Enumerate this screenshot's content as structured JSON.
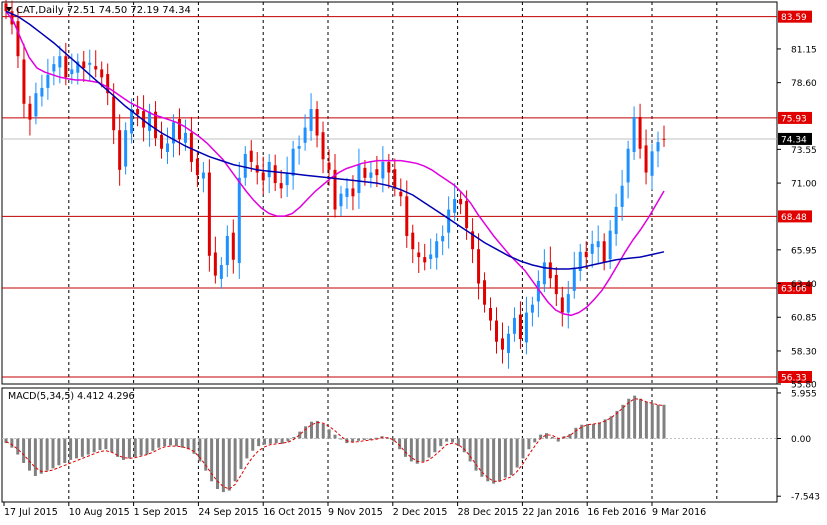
{
  "header": {
    "symbol_line": "CAT,Daily  72.51 74.50 72.19 74.34",
    "indicator_line": "MACD(5,34,5) 4.412 4.296"
  },
  "colors": {
    "background": "#ffffff",
    "bull_candle": "#1e90ff",
    "bear_candle": "#e00000",
    "ma_fast": "#e000e0",
    "ma_slow": "#0000b0",
    "level_line": "#c00000",
    "level_label_bg": "#e00000",
    "current_price_bg": "#000000",
    "grid": "#000000",
    "histogram": "#808080",
    "signal_line": "#e00000"
  },
  "chart_data": [
    {
      "type": "candlestick",
      "title": "CAT,Daily  72.51 74.50 72.19 74.34",
      "x_labels": [
        "17 Jul 2015",
        "10 Aug 2015",
        "1 Sep 2015",
        "24 Sep 2015",
        "16 Oct 2015",
        "9 Nov 2015",
        "2 Dec 2015",
        "28 Dec 2015",
        "22 Jan 2016",
        "16 Feb 2016",
        "9 Mar 2016"
      ],
      "y_ticks": [
        81.15,
        78.6,
        73.55,
        71.0,
        65.95,
        63.4,
        60.85,
        58.3,
        55.8
      ],
      "ylim": [
        55.8,
        84.7
      ],
      "grid": "vertical dotted",
      "horizontal_levels": [
        83.59,
        75.93,
        68.48,
        63.06,
        56.33
      ],
      "current_price": 74.34,
      "series": [
        {
          "name": "close",
          "values": [
            84.0,
            83.0,
            80.6,
            77.0,
            75.8,
            77.8,
            78.2,
            79.2,
            80.0,
            80.6,
            79.0,
            79.6,
            80.2,
            79.7,
            80.1,
            79.6,
            79.0,
            77.8,
            75.0,
            72.0,
            75.0,
            76.6,
            76.2,
            75.2,
            76.4,
            74.4,
            73.6,
            74.0,
            75.6,
            74.3,
            74.8,
            72.6,
            71.6,
            71.8,
            65.5,
            64.0,
            64.8,
            67.0,
            65.2,
            71.4,
            73.2,
            72.6,
            71.8,
            71.2,
            72.6,
            71.0,
            70.6,
            71.8,
            73.6,
            73.8,
            75.2,
            76.6,
            74.6,
            72.8,
            72.0,
            69.0,
            70.2,
            70.6,
            70.0,
            72.4,
            71.4,
            71.8,
            71.6,
            72.6,
            71.8,
            70.6,
            70.0,
            67.0,
            66.0,
            65.4,
            65.0,
            65.6,
            66.6,
            67.0,
            69.0,
            69.8,
            69.4,
            67.6,
            66.0,
            63.4,
            61.8,
            60.6,
            59.0,
            58.4,
            59.6,
            60.8,
            59.2,
            61.2,
            61.8,
            63.6,
            65.0,
            63.8,
            62.6,
            61.2,
            62.6,
            64.6,
            65.8,
            65.4,
            66.4,
            66.6,
            65.0,
            67.4,
            69.2,
            70.8,
            73.6,
            76.0,
            73.6,
            71.8,
            73.4,
            74.1,
            74.34
          ]
        },
        {
          "name": "ma-fast",
          "values": [
            84.0,
            83.2,
            81.8,
            80.5,
            79.7,
            79.4,
            79.2,
            79.0,
            78.9,
            78.8,
            78.8,
            78.7,
            78.6,
            78.3,
            77.9,
            77.5,
            77.1,
            76.8,
            76.5,
            76.2,
            76.0,
            75.8,
            75.6,
            75.3,
            74.9,
            74.5,
            74.0,
            73.4,
            72.8,
            72.0,
            71.2,
            70.4,
            69.7,
            69.1,
            68.7,
            68.5,
            68.5,
            68.7,
            69.2,
            69.8,
            70.4,
            70.9,
            71.4,
            71.8,
            72.1,
            72.3,
            72.5,
            72.6,
            72.7,
            72.7,
            72.7,
            72.7,
            72.6,
            72.5,
            72.3,
            72.0,
            71.6,
            71.2,
            70.8,
            70.2,
            69.5,
            68.6,
            67.8,
            67.0,
            66.3,
            65.6,
            65.0,
            64.4,
            63.6,
            62.8,
            62.0,
            61.4,
            61.1,
            61.0,
            61.2,
            61.6,
            62.2,
            62.9,
            63.8,
            64.8,
            65.8,
            66.7,
            67.5,
            68.4,
            69.4,
            70.4
          ]
        },
        {
          "name": "ma-slow",
          "values": [
            84.0,
            83.6,
            83.0,
            82.3,
            81.6,
            80.8,
            80.0,
            79.2,
            78.4,
            77.6,
            76.8,
            76.1,
            75.4,
            74.8,
            74.3,
            73.8,
            73.4,
            73.0,
            72.7,
            72.4,
            72.2,
            72.0,
            71.9,
            71.8,
            71.7,
            71.6,
            71.5,
            71.4,
            71.3,
            71.2,
            71.1,
            71.0,
            70.8,
            70.5,
            70.1,
            69.5,
            68.9,
            68.3,
            67.7,
            67.1,
            66.5,
            66.0,
            65.5,
            65.1,
            64.8,
            64.6,
            64.5,
            64.5,
            64.6,
            64.8,
            65.0,
            65.2,
            65.3,
            65.4,
            65.6,
            65.8
          ]
        }
      ]
    },
    {
      "type": "bar",
      "title": "MACD(5,34,5) 4.412 4.296",
      "y_ticks": [
        5.955,
        0.0,
        -7.543
      ],
      "ylim": [
        -8.3,
        6.6
      ],
      "series": [
        {
          "name": "MACD",
          "values": [
            -0.6,
            -1.2,
            -2.1,
            -3.2,
            -4.2,
            -4.9,
            -4.6,
            -4.2,
            -3.9,
            -3.5,
            -3.2,
            -2.8,
            -2.6,
            -2.4,
            -2.1,
            -1.8,
            -1.5,
            -1.4,
            -1.8,
            -2.4,
            -2.8,
            -2.6,
            -2.4,
            -2.2,
            -2.1,
            -1.6,
            -1.2,
            -1.0,
            -0.9,
            -1.0,
            -1.2,
            -1.4,
            -2.0,
            -3.0,
            -4.2,
            -5.6,
            -6.6,
            -7.0,
            -6.8,
            -5.6,
            -4.0,
            -2.6,
            -1.6,
            -1.0,
            -0.8,
            -0.7,
            -0.6,
            -0.7,
            -0.4,
            0.2,
            0.9,
            1.6,
            2.2,
            2.3,
            1.9,
            1.2,
            0.5,
            -0.1,
            -0.6,
            -0.5,
            -0.3,
            -0.2,
            -0.2,
            0.1,
            0.3,
            0.1,
            -0.4,
            -1.4,
            -2.4,
            -3.0,
            -3.3,
            -3.0,
            -2.5,
            -1.8,
            -1.0,
            -0.4,
            -0.5,
            -1.0,
            -1.8,
            -3.0,
            -4.2,
            -5.0,
            -5.6,
            -5.9,
            -5.6,
            -5.1,
            -4.8,
            -3.8,
            -2.6,
            -1.4,
            -0.5,
            0.5,
            0.7,
            0.2,
            -0.4,
            0.3,
            0.6,
            1.4,
            1.8,
            1.9,
            1.9,
            2.1,
            2.5,
            2.9,
            3.6,
            4.4,
            5.2,
            5.6,
            5.2,
            4.8,
            4.6,
            4.4,
            4.41
          ]
        },
        {
          "name": "Signal",
          "values": [
            -0.4,
            -0.8,
            -1.4,
            -2.1,
            -3.0,
            -3.8,
            -4.3,
            -4.3,
            -4.1,
            -3.8,
            -3.5,
            -3.2,
            -2.9,
            -2.6,
            -2.3,
            -2.0,
            -1.7,
            -1.6,
            -1.8,
            -2.2,
            -2.5,
            -2.6,
            -2.5,
            -2.3,
            -2.1,
            -1.8,
            -1.4,
            -1.1,
            -1.0,
            -1.0,
            -1.1,
            -1.3,
            -1.7,
            -2.5,
            -3.5,
            -4.6,
            -5.6,
            -6.3,
            -6.6,
            -6.0,
            -4.8,
            -3.5,
            -2.4,
            -1.6,
            -1.1,
            -0.8,
            -0.7,
            -0.6,
            -0.5,
            -0.1,
            0.5,
            1.2,
            1.8,
            2.1,
            2.0,
            1.6,
            1.0,
            0.3,
            -0.3,
            -0.5,
            -0.4,
            -0.3,
            -0.2,
            -0.1,
            0.1,
            0.1,
            -0.2,
            -0.9,
            -1.8,
            -2.5,
            -3.0,
            -3.1,
            -2.8,
            -2.2,
            -1.5,
            -0.8,
            -0.6,
            -0.8,
            -1.4,
            -2.3,
            -3.4,
            -4.4,
            -5.1,
            -5.6,
            -5.6,
            -5.3,
            -5.0,
            -4.3,
            -3.3,
            -2.1,
            -1.0,
            0.0,
            0.5,
            0.4,
            0.0,
            0.1,
            0.4,
            1.0,
            1.5,
            1.8,
            1.9,
            2.0,
            2.3,
            2.7,
            3.3,
            4.0,
            4.7,
            5.2,
            5.1,
            4.8,
            4.6,
            4.4,
            4.296
          ]
        }
      ]
    }
  ],
  "price_scale": {
    "labels": [
      "81.15",
      "78.60",
      "73.55",
      "71.00",
      "65.95",
      "63.40",
      "60.85",
      "58.30",
      "55.80"
    ],
    "level_labels": [
      "83.59",
      "75.93",
      "68.48",
      "63.06",
      "56.33"
    ],
    "current_label": "74.34"
  },
  "macd_scale": {
    "labels": [
      "5.955",
      "0.00",
      "-7.543"
    ]
  },
  "time_axis": {
    "labels": [
      "17 Jul 2015",
      "10 Aug 2015",
      "1 Sep 2015",
      "24 Sep 2015",
      "16 Oct 2015",
      "9 Nov 2015",
      "2 Dec 2015",
      "28 Dec 2015",
      "22 Jan 2016",
      "16 Feb 2016",
      "9 Mar 2016"
    ]
  }
}
